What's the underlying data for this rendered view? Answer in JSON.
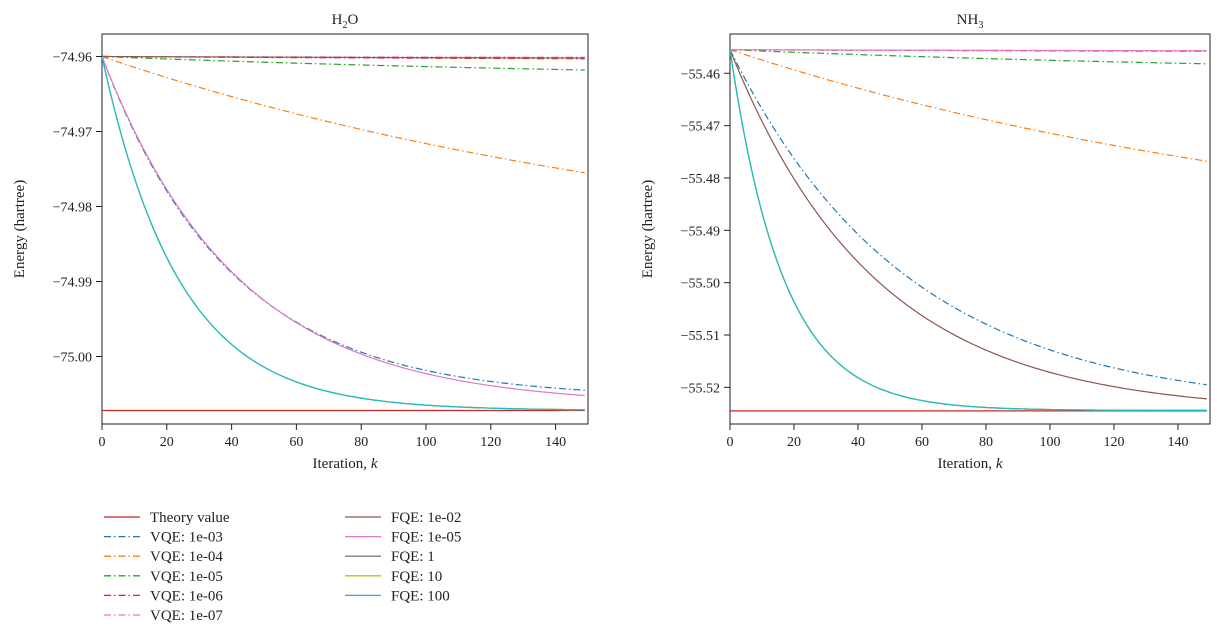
{
  "chart_data": [
    {
      "type": "line",
      "title": "H₂O",
      "title_base": "H",
      "title_sub": "2",
      "title_tail": "O",
      "xlabel": "Iteration, ",
      "xlabel_var": "k",
      "ylabel": "Energy (hartree)",
      "xlim": [
        0,
        150
      ],
      "ylim": [
        -75.009,
        -74.957
      ],
      "xticks": [
        0,
        20,
        40,
        60,
        80,
        100,
        120,
        140
      ],
      "yticks": [
        -75.0,
        -74.99,
        -74.98,
        -74.97,
        -74.96
      ],
      "ytick_labels": [
        "−75.00",
        "−74.99",
        "−74.98",
        "−74.97",
        "−74.96"
      ],
      "theory": -75.0072,
      "start": -74.96,
      "series": [
        {
          "name": "Theory value",
          "color": "#c62828",
          "dash": "solid",
          "kind": "const",
          "value": -75.0072
        },
        {
          "name": "VQE: 1e-03",
          "color": "#1f77b4",
          "dash": "dashdot",
          "kind": "exp",
          "end": -75.0045,
          "rate": 0.025
        },
        {
          "name": "VQE: 1e-04",
          "color": "#ff7f0e",
          "dash": "dashdot",
          "kind": "exp",
          "end": -74.9755,
          "rate": 0.005
        },
        {
          "name": "VQE: 1e-05",
          "color": "#2ca02c",
          "dash": "dashdot",
          "kind": "exp",
          "end": -74.9618,
          "rate": 0.005
        },
        {
          "name": "VQE: 1e-06",
          "color": "#d62728",
          "dash": "dashdot",
          "kind": "exp",
          "end": -74.9603,
          "rate": 0.005
        },
        {
          "name": "VQE: 1e-07",
          "color": "#e377c2",
          "dash": "dashdot",
          "kind": "exp",
          "end": -74.9601,
          "rate": 0.005
        },
        {
          "name": "FQE: 1e-02",
          "color": "#8c564b",
          "dash": "solid",
          "kind": "exp",
          "end": -74.9602,
          "rate": 0.005
        },
        {
          "name": "FQE: 1e-05",
          "color": "#e377c2",
          "dash": "solid",
          "kind": "exp",
          "end": -75.0052,
          "rate": 0.024
        },
        {
          "name": "FQE: 1",
          "color": "#7f7f7f",
          "dash": "solid",
          "kind": "exp",
          "end": -75.0071,
          "rate": 0.042
        },
        {
          "name": "FQE: 10",
          "color": "#bcbd22",
          "dash": "solid",
          "kind": "exp",
          "end": -75.0071,
          "rate": 0.042
        },
        {
          "name": "FQE: 100",
          "color": "#17becf",
          "dash": "solid",
          "kind": "exp",
          "end": -75.0071,
          "rate": 0.042
        }
      ]
    },
    {
      "type": "line",
      "title": "NH₃",
      "title_base": "NH",
      "title_sub": "3",
      "title_tail": "",
      "xlabel": "Iteration, ",
      "xlabel_var": "k",
      "ylabel": "Energy (hartree)",
      "xlim": [
        0,
        150
      ],
      "ylim": [
        -55.527,
        -55.4525
      ],
      "xticks": [
        0,
        20,
        40,
        60,
        80,
        100,
        120,
        140
      ],
      "yticks": [
        -55.52,
        -55.51,
        -55.5,
        -55.49,
        -55.48,
        -55.47,
        -55.46
      ],
      "ytick_labels": [
        "−55.52",
        "−55.51",
        "−55.50",
        "−55.49",
        "−55.48",
        "−55.47",
        "−55.46"
      ],
      "theory": -55.5245,
      "start": -55.4555,
      "series": [
        {
          "name": "Theory value",
          "color": "#c62828",
          "dash": "solid",
          "kind": "const",
          "value": -55.5245
        },
        {
          "name": "VQE: 1e-03",
          "color": "#1f77b4",
          "dash": "dashdot",
          "kind": "exp",
          "end": -55.5195,
          "rate": 0.018
        },
        {
          "name": "VQE: 1e-04",
          "color": "#ff7f0e",
          "dash": "dashdot",
          "kind": "exp",
          "end": -55.4768,
          "rate": 0.005
        },
        {
          "name": "VQE: 1e-05",
          "color": "#2ca02c",
          "dash": "dashdot",
          "kind": "exp",
          "end": -55.4582,
          "rate": 0.005
        },
        {
          "name": "VQE: 1e-06",
          "color": "#d62728",
          "dash": "dashdot",
          "kind": "exp",
          "end": -55.4558,
          "rate": 0.005
        },
        {
          "name": "VQE: 1e-07",
          "color": "#e377c2",
          "dash": "dashdot",
          "kind": "exp",
          "end": -55.4557,
          "rate": 0.005
        },
        {
          "name": "FQE: 1e-02",
          "color": "#8c564b",
          "dash": "solid",
          "kind": "exp",
          "end": -55.5222,
          "rate": 0.022
        },
        {
          "name": "FQE: 1e-05",
          "color": "#e377c2",
          "dash": "solid",
          "kind": "exp",
          "end": -55.4557,
          "rate": 0.005
        },
        {
          "name": "FQE: 1",
          "color": "#7f7f7f",
          "dash": "solid",
          "kind": "exp",
          "end": -55.5244,
          "rate": 0.06
        },
        {
          "name": "FQE: 10",
          "color": "#bcbd22",
          "dash": "solid",
          "kind": "exp",
          "end": -55.5244,
          "rate": 0.06
        },
        {
          "name": "FQE: 100",
          "color": "#17becf",
          "dash": "solid",
          "kind": "exp",
          "end": -55.5244,
          "rate": 0.06
        }
      ]
    }
  ],
  "legend": {
    "placement": "bottom-left",
    "columns": [
      [
        "Theory value",
        "VQE: 1e-03",
        "VQE: 1e-04",
        "VQE: 1e-05",
        "VQE: 1e-06",
        "VQE: 1e-07"
      ],
      [
        "FQE: 1e-02",
        "FQE: 1e-05",
        "FQE: 1",
        "FQE: 10",
        "FQE: 100"
      ]
    ]
  }
}
